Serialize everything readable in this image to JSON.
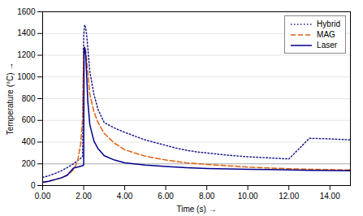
{
  "chart_data": {
    "type": "line",
    "title": "",
    "xlabel": "Time (s)",
    "ylabel": "Temperature (°C)",
    "xlim": [
      0,
      15.0
    ],
    "ylim": [
      0,
      1600
    ],
    "xticks": [
      {
        "value": 0.0,
        "label": "0.00"
      },
      {
        "value": 2.0,
        "label": "2.00"
      },
      {
        "value": 4.0,
        "label": "4.00"
      },
      {
        "value": 6.0,
        "label": "6.00"
      },
      {
        "value": 8.0,
        "label": "8.00"
      },
      {
        "value": 10.0,
        "label": "10.00"
      },
      {
        "value": 12.0,
        "label": "12.00"
      },
      {
        "value": 14.0,
        "label": "14.00"
      }
    ],
    "yticks": [
      0,
      200,
      400,
      600,
      800,
      1000,
      1200,
      1400,
      1600
    ],
    "grid": "y",
    "legend": "upper right",
    "hline": {
      "y": 200,
      "color": "#b0b0b0"
    },
    "series": [
      {
        "name": "Hybrid",
        "color": "#1c1c8c",
        "line_style": "dotted",
        "x": [
          0.0,
          0.3,
          0.6,
          0.9,
          1.2,
          1.5,
          1.7,
          1.85,
          1.95,
          2.0,
          2.05,
          2.1,
          2.15,
          2.2,
          2.3,
          2.5,
          2.7,
          3.0,
          3.5,
          4.0,
          4.5,
          5.0,
          5.5,
          6.0,
          6.5,
          7.0,
          7.5,
          8.0,
          9.0,
          10.0,
          11.0,
          12.0,
          13.0,
          14.0,
          15.0
        ],
        "values": [
          75,
          90,
          110,
          135,
          165,
          200,
          230,
          250,
          270,
          1380,
          1480,
          1450,
          1380,
          1270,
          1050,
          840,
          700,
          580,
          530,
          490,
          455,
          420,
          395,
          370,
          345,
          325,
          310,
          300,
          280,
          265,
          255,
          245,
          435,
          430,
          420
        ]
      },
      {
        "name": "MAG",
        "color": "#e06010",
        "line_style": "dashed",
        "x": [
          0.0,
          0.3,
          0.6,
          0.9,
          1.2,
          1.5,
          1.7,
          1.85,
          1.95,
          2.0,
          2.05,
          2.1,
          2.2,
          2.3,
          2.5,
          2.7,
          3.0,
          3.5,
          4.0,
          5.0,
          6.0,
          7.0,
          8.0,
          9.0,
          10.0,
          11.0,
          12.0,
          13.0,
          14.0,
          15.0
        ],
        "values": [
          30,
          40,
          55,
          70,
          95,
          145,
          220,
          380,
          620,
          1230,
          1280,
          1240,
          1050,
          840,
          680,
          580,
          480,
          390,
          330,
          270,
          235,
          210,
          195,
          182,
          170,
          162,
          155,
          150,
          147,
          143
        ]
      },
      {
        "name": "Laser",
        "color": "#00008B",
        "line_style": "solid",
        "x": [
          0.0,
          0.3,
          0.6,
          0.9,
          1.2,
          1.5,
          1.7,
          1.85,
          1.95,
          2.0,
          2.02,
          2.05,
          2.1,
          2.15,
          2.2,
          2.3,
          2.5,
          2.7,
          3.0,
          3.5,
          4.0,
          5.0,
          6.0,
          7.0,
          8.0,
          9.0,
          10.0,
          11.0,
          12.0,
          13.0,
          14.0,
          15.0
        ],
        "values": [
          30,
          40,
          55,
          70,
          95,
          160,
          170,
          178,
          183,
          190,
          1265,
          1270,
          1200,
          1000,
          780,
          560,
          410,
          340,
          275,
          235,
          210,
          188,
          175,
          164,
          157,
          153,
          150,
          147,
          144,
          141,
          139,
          136
        ]
      }
    ]
  }
}
